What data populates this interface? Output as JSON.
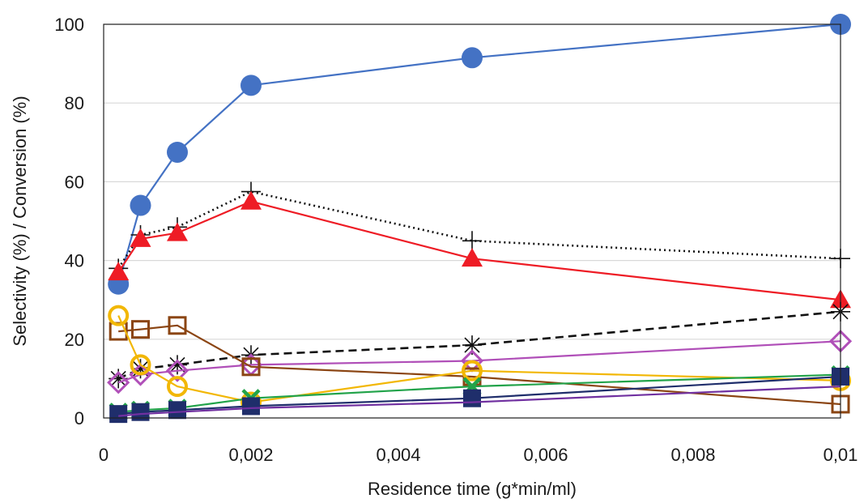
{
  "chart_data": {
    "type": "line",
    "title": "",
    "xlabel": "Residence time (g*min/ml)",
    "ylabel": "Selectivity (%) / Conversion (%)",
    "xlim": [
      0,
      0.01
    ],
    "ylim": [
      0,
      100
    ],
    "x_ticks": [
      0,
      0.002,
      0.004,
      0.006,
      0.008,
      0.01
    ],
    "x_tick_labels": [
      "0",
      "0,002",
      "0,004",
      "0,006",
      "0,008",
      "0,01"
    ],
    "y_ticks": [
      0,
      20,
      40,
      60,
      80,
      100
    ],
    "y_tick_labels": [
      "0",
      "20",
      "40",
      "60",
      "80",
      "100"
    ],
    "grid": "horizontal",
    "legend": "none",
    "x": [
      0.0002,
      0.0005,
      0.001,
      0.002,
      0.005,
      0.01
    ],
    "series": [
      {
        "color": "#4472c4",
        "line": "solid",
        "marker": "circle-filled",
        "values": [
          34,
          54,
          67.5,
          84.5,
          91.5,
          100
        ]
      },
      {
        "color": "#111111",
        "line": "dotted",
        "marker": "plus",
        "values": [
          38,
          46.5,
          48.5,
          57.5,
          45,
          40.5
        ]
      },
      {
        "color": "#ee1c25",
        "line": "solid",
        "marker": "triangle-filled",
        "values": [
          37,
          45.5,
          47,
          55,
          40.5,
          30
        ]
      },
      {
        "color": "#111111",
        "line": "dashed",
        "marker": "star",
        "values": [
          10,
          12.5,
          13.5,
          16,
          18.5,
          27
        ]
      },
      {
        "color": "#b04fb8",
        "line": "solid",
        "marker": "diamond-open",
        "values": [
          9,
          11,
          12,
          13.5,
          14.5,
          19.5
        ]
      },
      {
        "color": "#8b4513",
        "line": "solid",
        "marker": "square-open",
        "values": [
          22,
          22.5,
          23.5,
          13,
          10.5,
          3.5
        ]
      },
      {
        "color": "#f2b705",
        "line": "solid",
        "marker": "circle-open",
        "values": [
          26,
          13.5,
          8,
          4,
          12,
          9.5
        ]
      },
      {
        "color": "#22a34a",
        "line": "solid",
        "marker": "x",
        "values": [
          1.5,
          2,
          2.5,
          5,
          8,
          11
        ]
      },
      {
        "color": "#1f2e6b",
        "line": "solid",
        "marker": "square-filled",
        "values": [
          1,
          1.5,
          2,
          3,
          5,
          10.5
        ]
      },
      {
        "color": "#7030a0",
        "line": "solid",
        "marker": "none",
        "values": [
          0.5,
          1,
          1.5,
          2.5,
          4,
          8
        ]
      }
    ]
  }
}
